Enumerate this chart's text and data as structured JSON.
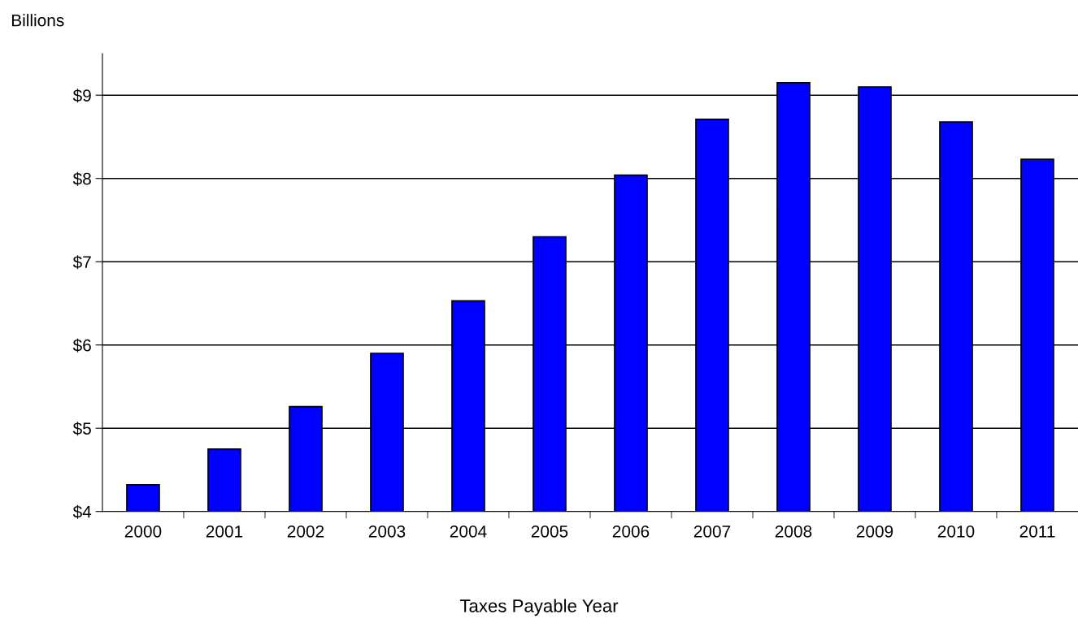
{
  "chart_data": {
    "type": "bar",
    "ylabel": "Billions",
    "xlabel": "Taxes Payable Year",
    "categories": [
      "2000",
      "2001",
      "2002",
      "2003",
      "2004",
      "2005",
      "2006",
      "2007",
      "2008",
      "2009",
      "2010",
      "2011"
    ],
    "values": [
      4.32,
      4.75,
      5.26,
      5.9,
      6.53,
      7.3,
      8.04,
      8.71,
      9.15,
      9.1,
      8.68,
      8.23
    ],
    "color": "#0000ff",
    "ylim": [
      4,
      9.5
    ],
    "yticks": [
      {
        "value": 4,
        "label": "$4"
      },
      {
        "value": 5,
        "label": "$5"
      },
      {
        "value": 6,
        "label": "$6"
      },
      {
        "value": 7,
        "label": "$7"
      },
      {
        "value": 8,
        "label": "$8"
      },
      {
        "value": 9,
        "label": "$9"
      }
    ],
    "grid": "y",
    "legend": false
  }
}
